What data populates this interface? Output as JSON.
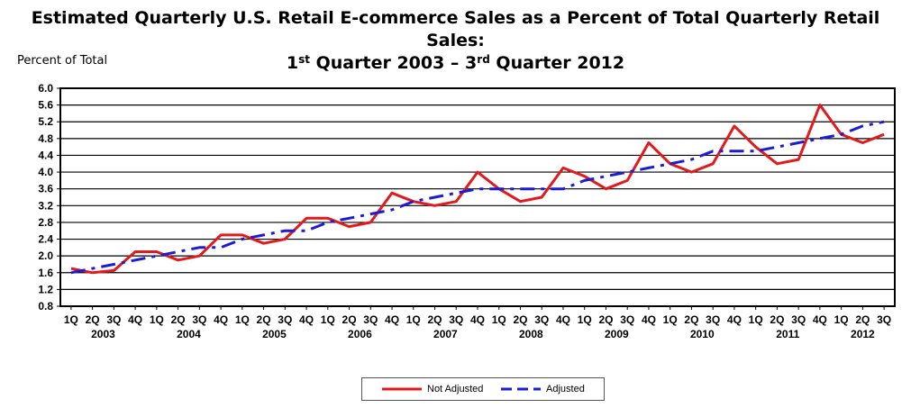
{
  "title": {
    "line1": "Estimated Quarterly U.S. Retail E-commerce Sales as a Percent of Total Quarterly Retail Sales:",
    "line2_part1": "1",
    "line2_sup1": "st",
    "line2_part2": " Quarter 2003 – 3",
    "line2_sup2": "rd",
    "line2_part3": " Quarter 2012"
  },
  "colors": {
    "not_adjusted": "#e31a1c",
    "adjusted": "#1c1cd6",
    "grid": "#000000"
  },
  "chart_data": {
    "type": "line",
    "title": "Estimated Quarterly U.S. Retail E-commerce Sales as a Percent of Total Quarterly Retail Sales: 1st Quarter 2003 – 3rd Quarter 2012",
    "ylabel": "Percent of Total",
    "xlabel": "",
    "ylim": [
      0.8,
      6.0
    ],
    "yticks": [
      "0.8",
      "1.2",
      "1.6",
      "2.0",
      "2.4",
      "2.8",
      "3.2",
      "3.6",
      "4.0",
      "4.4",
      "4.8",
      "5.2",
      "5.6",
      "6.0"
    ],
    "grid": true,
    "legend_position": "bottom",
    "quarter_labels": [
      "1Q",
      "2Q",
      "3Q",
      "4Q",
      "1Q",
      "2Q",
      "3Q",
      "4Q",
      "1Q",
      "2Q",
      "3Q",
      "4Q",
      "1Q",
      "2Q",
      "3Q",
      "4Q",
      "1Q",
      "2Q",
      "3Q",
      "4Q",
      "1Q",
      "2Q",
      "3Q",
      "4Q",
      "1Q",
      "2Q",
      "3Q",
      "4Q",
      "1Q",
      "2Q",
      "3Q",
      "4Q",
      "1Q",
      "2Q",
      "3Q",
      "4Q",
      "1Q",
      "2Q",
      "3Q"
    ],
    "years": [
      "2003",
      "2004",
      "2005",
      "2006",
      "2007",
      "2008",
      "2009",
      "2010",
      "2011",
      "2012"
    ],
    "series": [
      {
        "name": "Not Adjusted",
        "style": "solid",
        "values": [
          1.7,
          1.6,
          1.65,
          2.1,
          2.1,
          1.9,
          2.0,
          2.5,
          2.5,
          2.3,
          2.4,
          2.9,
          2.9,
          2.7,
          2.8,
          3.5,
          3.3,
          3.2,
          3.3,
          4.0,
          3.6,
          3.3,
          3.4,
          4.1,
          3.9,
          3.6,
          3.8,
          4.7,
          4.2,
          4.0,
          4.2,
          5.1,
          4.6,
          4.2,
          4.3,
          5.6,
          4.9,
          4.7,
          4.9
        ]
      },
      {
        "name": "Adjusted",
        "style": "dashed",
        "values": [
          1.6,
          1.7,
          1.8,
          1.9,
          2.0,
          2.1,
          2.2,
          2.2,
          2.4,
          2.5,
          2.6,
          2.6,
          2.8,
          2.9,
          3.0,
          3.1,
          3.3,
          3.4,
          3.5,
          3.6,
          3.6,
          3.6,
          3.6,
          3.6,
          3.8,
          3.9,
          4.0,
          4.1,
          4.2,
          4.3,
          4.5,
          4.5,
          4.5,
          4.6,
          4.7,
          4.8,
          4.9,
          5.1,
          5.2
        ]
      }
    ]
  }
}
